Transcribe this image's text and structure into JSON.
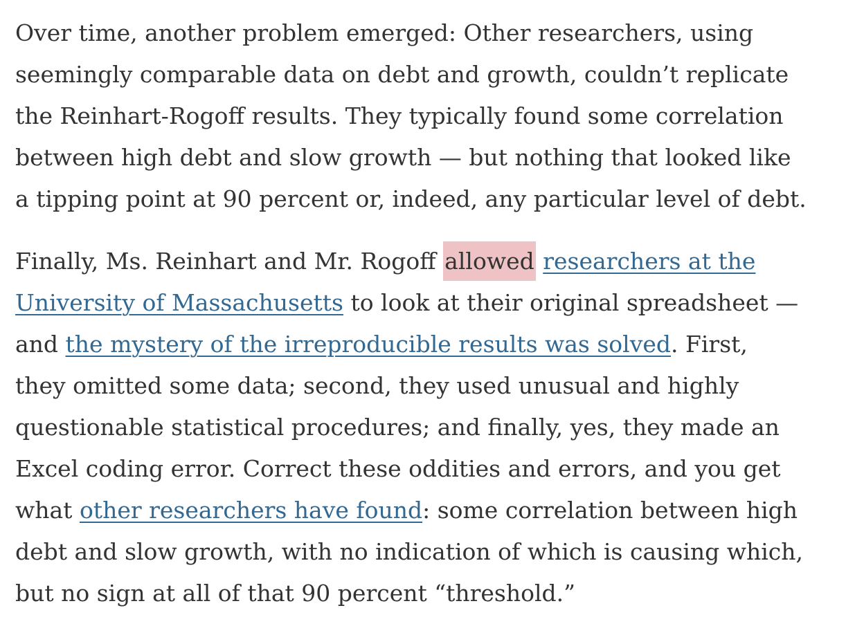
{
  "colors": {
    "text": "#333333",
    "link": "#326891",
    "highlight": "#efc3c5"
  },
  "paragraphs": [
    {
      "lines": [
        [
          {
            "text": "Over time, another problem emerged: Other researchers, using"
          }
        ],
        [
          {
            "text": "seemingly comparable data on debt and growth, couldn’t replicate"
          }
        ],
        [
          {
            "text": "the Reinhart-Rogoff results. They typically found some correlation"
          }
        ],
        [
          {
            "text": "between high debt and slow growth — but nothing that looked like"
          }
        ],
        [
          {
            "text": "a tipping point at 90 percent or, indeed, any particular level of debt."
          }
        ]
      ]
    },
    {
      "lines": [
        [
          {
            "text": "Finally, Ms. Reinhart and Mr. Rogoff "
          },
          {
            "text": "allowed",
            "type": "highlight"
          },
          {
            "text": " "
          },
          {
            "text": "researchers at the",
            "type": "link"
          }
        ],
        [
          {
            "text": "University of Massachusetts",
            "type": "link"
          },
          {
            "text": " to look at their original spreadsheet —"
          }
        ],
        [
          {
            "text": "and "
          },
          {
            "text": "the mystery of the irreproducible results was solved",
            "type": "link"
          },
          {
            "text": ". First,"
          }
        ],
        [
          {
            "text": "they omitted some data; second, they used unusual and highly"
          }
        ],
        [
          {
            "text": "questionable statistical procedures; and finally, yes, they made an"
          }
        ],
        [
          {
            "text": "Excel coding error. Correct these oddities and errors, and you get"
          }
        ],
        [
          {
            "text": "what "
          },
          {
            "text": "other researchers have found",
            "type": "link"
          },
          {
            "text": ": some correlation between high"
          }
        ],
        [
          {
            "text": "debt and slow growth, with no indication of which is causing which,"
          }
        ],
        [
          {
            "text": "but no sign at all of that 90 percent “threshold.”"
          }
        ]
      ]
    }
  ]
}
